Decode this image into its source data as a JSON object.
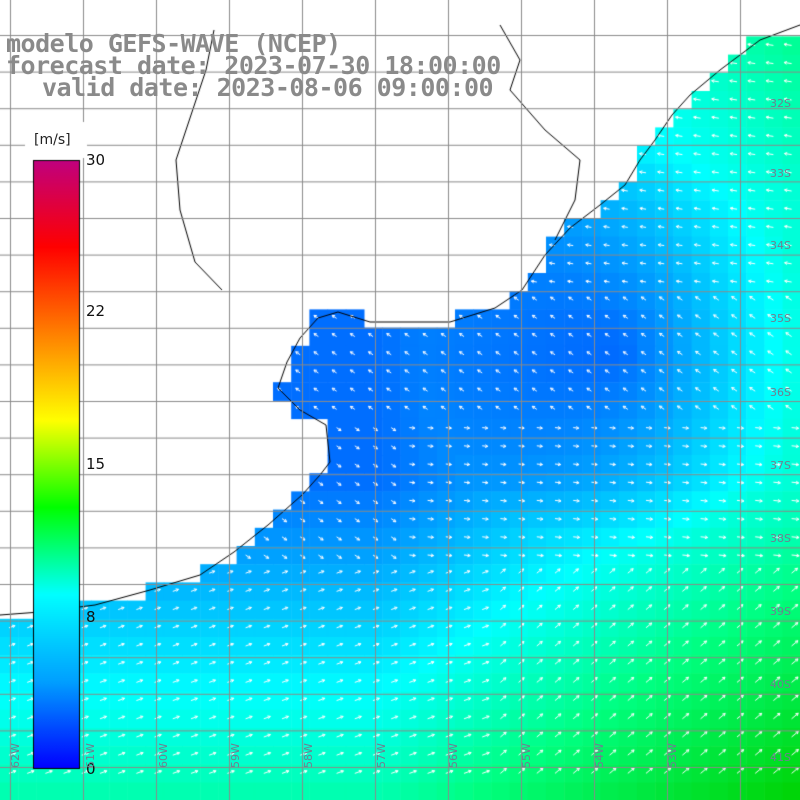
{
  "title": {
    "model": "modelo GEFS-WAVE (NCEP)",
    "forecast": "forecast date: 2023-07-30 18:00:00",
    "valid": "valid date: 2023-08-06 09:00:00"
  },
  "colorbar": {
    "units": "[m/s]",
    "ticks": [
      "30",
      "22",
      "15",
      "8",
      "0"
    ],
    "colors": [
      "#0000ff",
      "#00a0ff",
      "#00ffff",
      "#00ff00",
      "#ffff00",
      "#ff8000",
      "#ff0000",
      "#c0007f"
    ]
  },
  "map": {
    "land_color": "#ffffff",
    "grid_color": "#8a8a8a",
    "coast_color": "#000000",
    "lat_labels": [
      "32S",
      "33S",
      "34S",
      "35S",
      "36S",
      "37S",
      "38S",
      "39S",
      "40S",
      "41S"
    ],
    "lon_labels": [
      "62W",
      "61W",
      "60W",
      "59W",
      "58W",
      "57W",
      "56W",
      "55W",
      "54W",
      "53W"
    ],
    "field": "wind speed and direction"
  }
}
